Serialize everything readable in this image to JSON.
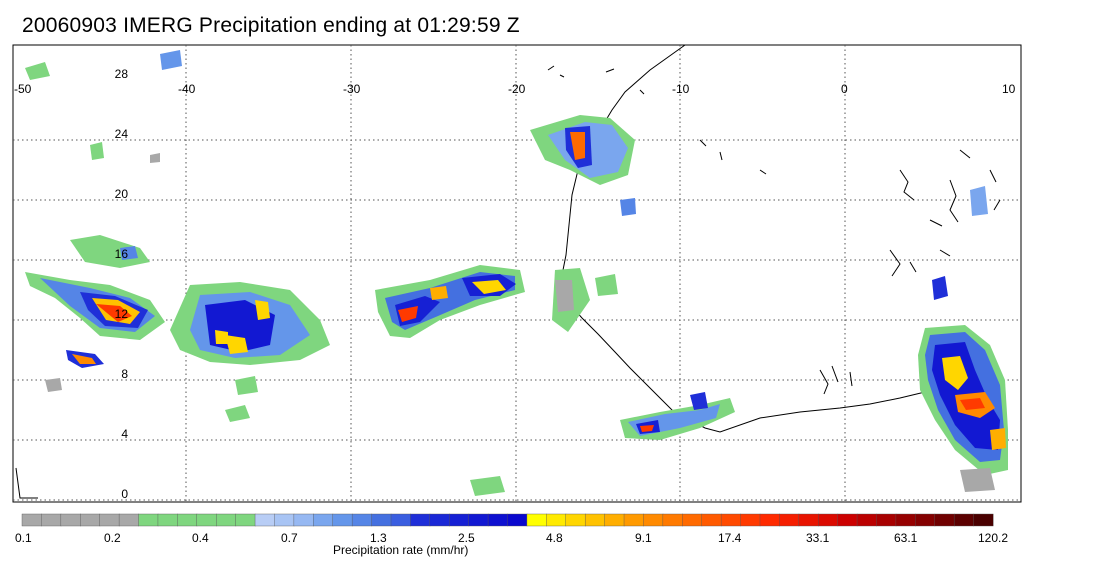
{
  "title": "20060903 IMERG Precipitation ending at 01:29:59 Z",
  "map": {
    "lon_labels": [
      "-50",
      "-40",
      "-30",
      "-20",
      "-10",
      "0",
      "10"
    ],
    "lat_labels": [
      "28",
      "24",
      "20",
      "16",
      "12",
      "8",
      "4",
      "0"
    ],
    "grid": "dotted",
    "land_outline": "black coastlines"
  },
  "legend": {
    "caption": "Precipitation rate (mm/hr)",
    "tick_labels": [
      "0.1",
      "0.2",
      "0.4",
      "0.7",
      "1.3",
      "2.5",
      "4.8",
      "9.1",
      "17.4",
      "33.1",
      "63.1",
      "120.2"
    ],
    "colors": [
      "#a8a8a8",
      "#a8a8a8",
      "#a8a8a8",
      "#a8a8a8",
      "#a8a8a8",
      "#a8a8a8",
      "#7fd67f",
      "#7fd67f",
      "#7fd67f",
      "#7fd67f",
      "#7fd67f",
      "#7fd67f",
      "#b8cdf5",
      "#a8c4f4",
      "#96b8f2",
      "#7aa6ee",
      "#6496ea",
      "#5585e6",
      "#4470e0",
      "#3a5ee0",
      "#1f2fd8",
      "#1a28d6",
      "#1620d4",
      "#1218d2",
      "#0e10d0",
      "#0a08ce",
      "#ffff00",
      "#ffea00",
      "#ffd600",
      "#ffc200",
      "#ffae00",
      "#ff9a00",
      "#ff8a00",
      "#ff7a00",
      "#ff6a00",
      "#ff5a00",
      "#ff4a00",
      "#ff3a00",
      "#ff2a00",
      "#f51e00",
      "#e81400",
      "#db0a00",
      "#cc0000",
      "#bb0000",
      "#a80000",
      "#960000",
      "#840000",
      "#700000",
      "#5c0000",
      "#4a0000"
    ]
  }
}
